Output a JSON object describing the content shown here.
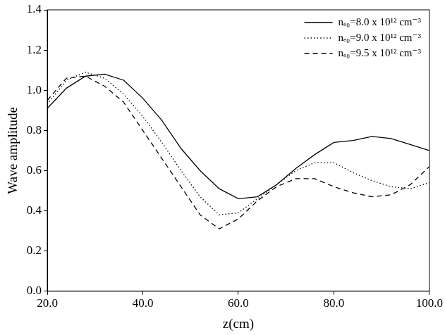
{
  "chart_data": {
    "type": "line",
    "x_label": "z(cm)",
    "y_label": "Wave amplitude",
    "x": [
      20,
      24,
      28,
      32,
      36,
      40,
      44,
      48,
      52,
      56,
      60,
      64,
      68,
      72,
      76,
      80,
      84,
      88,
      92,
      96,
      100
    ],
    "series": [
      {
        "name": "nₑ₀=8.0 x 10¹² cm⁻³",
        "color": "#000000",
        "line_style": "solid",
        "values": [
          0.91,
          1.01,
          1.07,
          1.08,
          1.05,
          0.96,
          0.85,
          0.71,
          0.6,
          0.51,
          0.46,
          0.47,
          0.53,
          0.61,
          0.68,
          0.74,
          0.75,
          0.77,
          0.76,
          0.73,
          0.7
        ]
      },
      {
        "name": "nₑ₀=9.0 x 10¹² cm⁻³",
        "color": "#000000",
        "line_style": "dotted",
        "values": [
          0.93,
          1.05,
          1.09,
          1.06,
          0.98,
          0.87,
          0.74,
          0.6,
          0.47,
          0.38,
          0.39,
          0.46,
          0.53,
          0.6,
          0.64,
          0.64,
          0.59,
          0.55,
          0.52,
          0.51,
          0.54
        ]
      },
      {
        "name": "nₑ₀=9.5 x 10¹² cm⁻³",
        "color": "#000000",
        "line_style": "dashed",
        "values": [
          0.95,
          1.06,
          1.07,
          1.02,
          0.94,
          0.8,
          0.66,
          0.52,
          0.38,
          0.31,
          0.36,
          0.45,
          0.52,
          0.56,
          0.56,
          0.52,
          0.49,
          0.47,
          0.48,
          0.53,
          0.62
        ]
      }
    ],
    "xlim": [
      20,
      100
    ],
    "xticks": [
      {
        "value": 20,
        "label": "20.0"
      },
      {
        "value": 40,
        "label": "40.0"
      },
      {
        "value": 60,
        "label": "60.0"
      },
      {
        "value": 80,
        "label": "80.0"
      },
      {
        "value": 100,
        "label": "100.0"
      }
    ],
    "ylim": [
      0,
      1.4
    ],
    "yticks": [
      {
        "value": 0,
        "label": "0.0"
      },
      {
        "value": 0.2,
        "label": "0.2"
      },
      {
        "value": 0.4,
        "label": "0.4"
      },
      {
        "value": 0.6,
        "label": "0.6"
      },
      {
        "value": 0.8,
        "label": "0.8"
      },
      {
        "value": 1.0,
        "label": "1.0"
      },
      {
        "value": 1.2,
        "label": "1.2"
      },
      {
        "value": 1.4,
        "label": "1.4"
      }
    ],
    "grid": false,
    "legend": "upper right"
  }
}
